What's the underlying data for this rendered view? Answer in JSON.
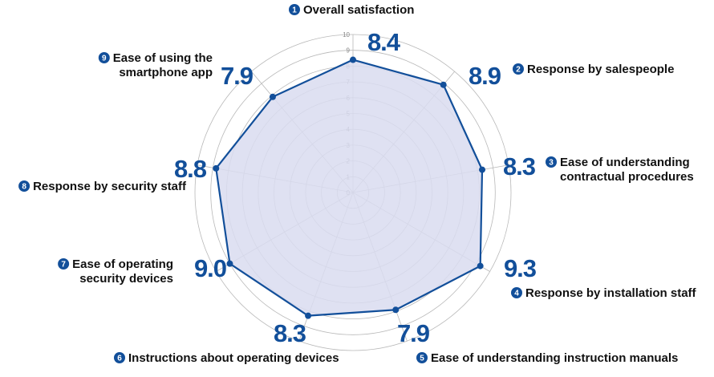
{
  "chart_data": {
    "type": "radar",
    "range": [
      0,
      10
    ],
    "ticks": [
      0,
      1,
      2,
      3,
      4,
      5,
      6,
      7,
      8,
      9,
      10
    ],
    "grid": true,
    "colors": {
      "line": "#124f9a",
      "fill": "#d9dcf0",
      "grid": "#b8b8b8",
      "badge": "#124f9a"
    },
    "axes": [
      {
        "num": "1",
        "label": "Overall satisfaction",
        "value": 8.4,
        "value_text": "8.4"
      },
      {
        "num": "2",
        "label": "Response by salespeople",
        "value": 8.9,
        "value_text": "8.9"
      },
      {
        "num": "3",
        "label": "Ease of understanding\ncontractual procedures",
        "value": 8.3,
        "value_text": "8.3"
      },
      {
        "num": "4",
        "label": "Response by installation staff",
        "value": 9.3,
        "value_text": "9.3"
      },
      {
        "num": "5",
        "label": "Ease of understanding instruction manuals",
        "value": 7.9,
        "value_text": "7.9"
      },
      {
        "num": "6",
        "label": "Instructions about operating devices",
        "value": 8.3,
        "value_text": "8.3"
      },
      {
        "num": "7",
        "label": "Ease of operating\nsecurity devices",
        "value": 9.0,
        "value_text": "9.0"
      },
      {
        "num": "8",
        "label": "Response by security staff",
        "value": 8.8,
        "value_text": "8.8"
      },
      {
        "num": "9",
        "label": "Ease of using the\nsmartphone app",
        "value": 7.9,
        "value_text": "7.9"
      }
    ]
  }
}
